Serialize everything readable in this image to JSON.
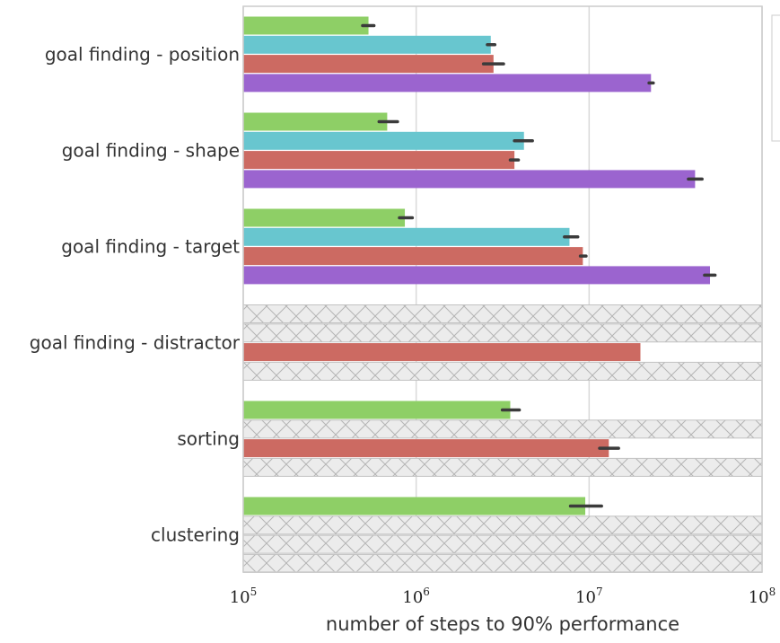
{
  "chart_data": {
    "type": "bar",
    "orientation": "horizontal",
    "xscale": "log",
    "xlim": [
      100000,
      100000000
    ],
    "xticks": [
      {
        "value": 100000,
        "base": "10",
        "exp": "5"
      },
      {
        "value": 1000000,
        "base": "10",
        "exp": "6"
      },
      {
        "value": 10000000,
        "base": "10",
        "exp": "7"
      },
      {
        "value": 100000000,
        "base": "10",
        "exp": "8"
      }
    ],
    "xlabel": "number of steps to 90% performance",
    "ylabel": "",
    "grid": "vertical",
    "legend": "top-right (cropped, entries not visible)",
    "categories": [
      "goal finding - position",
      "goal finding - shape",
      "goal finding - target",
      "goal finding - distractor",
      "sorting",
      "clustering"
    ],
    "series": [
      {
        "color": "#8ecf66",
        "values": [
          530000,
          680000,
          860000,
          null,
          3500000,
          9500000
        ],
        "err_low": [
          490000,
          610000,
          800000,
          null,
          3150000,
          7800000
        ],
        "err_high": [
          570000,
          780000,
          950000,
          null,
          3950000,
          11800000
        ]
      },
      {
        "color": "#68c6cf",
        "values": [
          2700000,
          4200000,
          7700000,
          null,
          null,
          null
        ],
        "err_low": [
          2580000,
          3700000,
          7200000,
          null,
          null,
          null
        ],
        "err_high": [
          2850000,
          4700000,
          8600000,
          null,
          null,
          null
        ]
      },
      {
        "color": "#cc6a62",
        "values": [
          2800000,
          3700000,
          9200000,
          19800000,
          13000000,
          null
        ],
        "err_low": [
          2450000,
          3500000,
          8900000,
          null,
          11500000,
          null
        ],
        "err_high": [
          3200000,
          3900000,
          9600000,
          null,
          14800000,
          null
        ]
      },
      {
        "color": "#9b64cf",
        "values": [
          22800000,
          41000000,
          50000000,
          null,
          null,
          null
        ],
        "err_low": [
          22200000,
          37500000,
          46500000,
          null,
          null,
          null
        ],
        "err_high": [
          23500000,
          45000000,
          53500000,
          null,
          null,
          null
        ]
      }
    ]
  }
}
